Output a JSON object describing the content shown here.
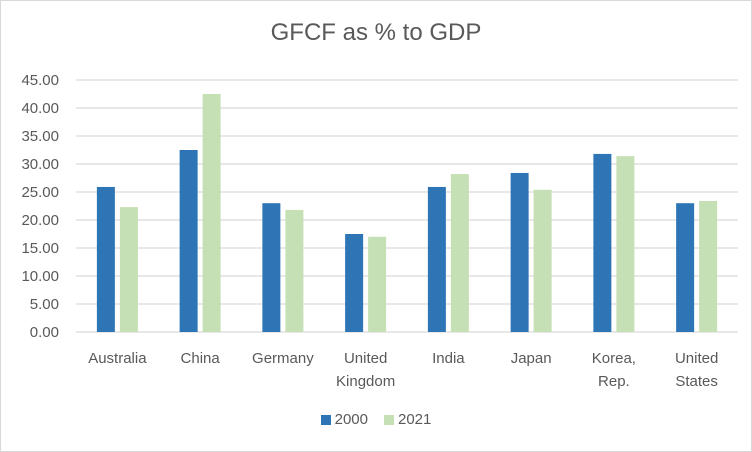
{
  "chart_data": {
    "type": "bar",
    "title": "GFCF as % to GDP",
    "xlabel": "",
    "ylabel": "",
    "categories": [
      "Australia",
      "China",
      "Germany",
      "United Kingdom",
      "India",
      "Japan",
      "Korea, Rep.",
      "United States"
    ],
    "category_lines": [
      [
        "Australia"
      ],
      [
        "China"
      ],
      [
        "Germany"
      ],
      [
        "United",
        "Kingdom"
      ],
      [
        "India"
      ],
      [
        "Japan"
      ],
      [
        "Korea,",
        "Rep."
      ],
      [
        "United",
        "States"
      ]
    ],
    "series": [
      {
        "name": "2000",
        "color": "#2e75b6",
        "values": [
          25.9,
          32.5,
          23.0,
          17.5,
          25.9,
          28.4,
          31.8,
          23.0
        ]
      },
      {
        "name": "2021",
        "color": "#c5e0b4",
        "values": [
          22.3,
          42.5,
          21.8,
          17.0,
          28.2,
          25.4,
          31.4,
          23.4
        ]
      }
    ],
    "ylim": [
      0,
      45
    ],
    "yticks": [
      "0.00",
      "5.00",
      "10.00",
      "15.00",
      "20.00",
      "25.00",
      "30.00",
      "35.00",
      "40.00",
      "45.00"
    ],
    "grid": true,
    "legend": "bottom-center"
  }
}
